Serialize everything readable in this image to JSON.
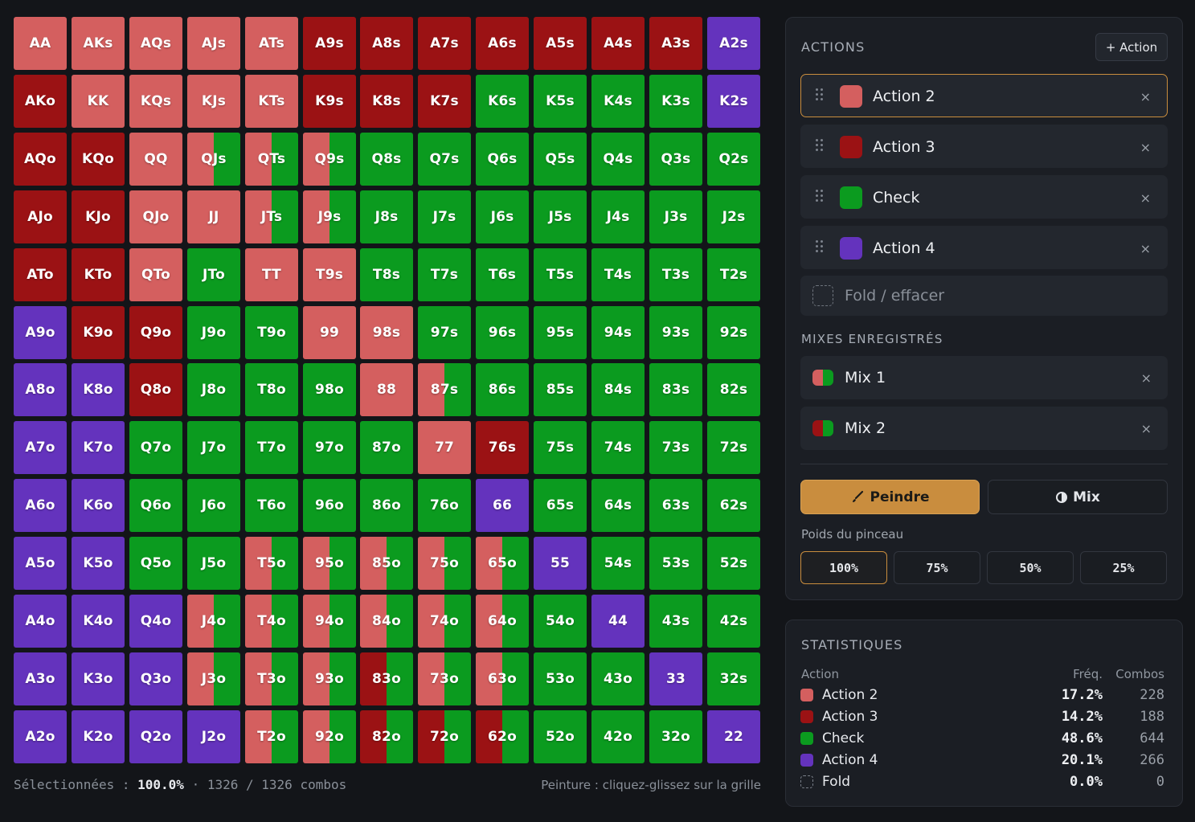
{
  "colors": {
    "action2": "#d45f5f",
    "action3": "#9b1214",
    "check": "#0b9b1f",
    "action4": "#6433bd",
    "accent": "#c98d3e"
  },
  "grid": {
    "rows": [
      [
        "AA",
        "AKs",
        "AQs",
        "AJs",
        "ATs",
        "A9s",
        "A8s",
        "A7s",
        "A6s",
        "A5s",
        "A4s",
        "A3s",
        "A2s"
      ],
      [
        "AKo",
        "KK",
        "KQs",
        "KJs",
        "KTs",
        "K9s",
        "K8s",
        "K7s",
        "K6s",
        "K5s",
        "K4s",
        "K3s",
        "K2s"
      ],
      [
        "AQo",
        "KQo",
        "QQ",
        "QJs",
        "QTs",
        "Q9s",
        "Q8s",
        "Q7s",
        "Q6s",
        "Q5s",
        "Q4s",
        "Q3s",
        "Q2s"
      ],
      [
        "AJo",
        "KJo",
        "QJo",
        "JJ",
        "JTs",
        "J9s",
        "J8s",
        "J7s",
        "J6s",
        "J5s",
        "J4s",
        "J3s",
        "J2s"
      ],
      [
        "ATo",
        "KTo",
        "QTo",
        "JTo",
        "TT",
        "T9s",
        "T8s",
        "T7s",
        "T6s",
        "T5s",
        "T4s",
        "T3s",
        "T2s"
      ],
      [
        "A9o",
        "K9o",
        "Q9o",
        "J9o",
        "T9o",
        "99",
        "98s",
        "97s",
        "96s",
        "95s",
        "94s",
        "93s",
        "92s"
      ],
      [
        "A8o",
        "K8o",
        "Q8o",
        "J8o",
        "T8o",
        "98o",
        "88",
        "87s",
        "86s",
        "85s",
        "84s",
        "83s",
        "82s"
      ],
      [
        "A7o",
        "K7o",
        "Q7o",
        "J7o",
        "T7o",
        "97o",
        "87o",
        "77",
        "76s",
        "75s",
        "74s",
        "73s",
        "72s"
      ],
      [
        "A6o",
        "K6o",
        "Q6o",
        "J6o",
        "T6o",
        "96o",
        "86o",
        "76o",
        "66",
        "65s",
        "64s",
        "63s",
        "62s"
      ],
      [
        "A5o",
        "K5o",
        "Q5o",
        "J5o",
        "T5o",
        "95o",
        "85o",
        "75o",
        "65o",
        "55",
        "54s",
        "53s",
        "52s"
      ],
      [
        "A4o",
        "K4o",
        "Q4o",
        "J4o",
        "T4o",
        "94o",
        "84o",
        "74o",
        "64o",
        "54o",
        "44",
        "43s",
        "42s"
      ],
      [
        "A3o",
        "K3o",
        "Q3o",
        "J3o",
        "T3o",
        "93o",
        "83o",
        "73o",
        "63o",
        "53o",
        "43o",
        "33",
        "32s"
      ],
      [
        "A2o",
        "K2o",
        "Q2o",
        "J2o",
        "T2o",
        "92o",
        "82o",
        "72o",
        "62o",
        "52o",
        "42o",
        "32o",
        "22"
      ]
    ],
    "fills": [
      [
        "2",
        "2",
        "2",
        "2",
        "2",
        "3",
        "3",
        "3",
        "3",
        "3",
        "3",
        "3",
        "4"
      ],
      [
        "3",
        "2",
        "2",
        "2",
        "2",
        "3",
        "3",
        "3",
        "c",
        "c",
        "c",
        "c",
        "4"
      ],
      [
        "3",
        "3",
        "2",
        "m1",
        "m1",
        "m1",
        "c",
        "c",
        "c",
        "c",
        "c",
        "c",
        "c"
      ],
      [
        "3",
        "3",
        "2",
        "2",
        "m1",
        "m1",
        "c",
        "c",
        "c",
        "c",
        "c",
        "c",
        "c"
      ],
      [
        "3",
        "3",
        "2",
        "c",
        "2",
        "2",
        "c",
        "c",
        "c",
        "c",
        "c",
        "c",
        "c"
      ],
      [
        "4",
        "3",
        "3",
        "c",
        "c",
        "2",
        "2",
        "c",
        "c",
        "c",
        "c",
        "c",
        "c"
      ],
      [
        "4",
        "4",
        "3",
        "c",
        "c",
        "c",
        "2",
        "m1",
        "c",
        "c",
        "c",
        "c",
        "c"
      ],
      [
        "4",
        "4",
        "c",
        "c",
        "c",
        "c",
        "c",
        "2",
        "3",
        "c",
        "c",
        "c",
        "c"
      ],
      [
        "4",
        "4",
        "c",
        "c",
        "c",
        "c",
        "c",
        "c",
        "4",
        "c",
        "c",
        "c",
        "c"
      ],
      [
        "4",
        "4",
        "c",
        "c",
        "m1",
        "m1",
        "m1",
        "m1",
        "m1",
        "4",
        "c",
        "c",
        "c"
      ],
      [
        "4",
        "4",
        "4",
        "m1",
        "m1",
        "m1",
        "m1",
        "m1",
        "m1",
        "c",
        "4",
        "c",
        "c"
      ],
      [
        "4",
        "4",
        "4",
        "m1",
        "m1",
        "m1",
        "m2",
        "m1",
        "m1",
        "c",
        "c",
        "4",
        "c"
      ],
      [
        "4",
        "4",
        "4",
        "4",
        "m1",
        "m1",
        "m2",
        "m2",
        "m2",
        "c",
        "c",
        "c",
        "4"
      ]
    ]
  },
  "footer": {
    "selected_label": "Sélectionnées :",
    "selected_pct": "100.0%",
    "combos_text": "· 1326 / 1326 combos",
    "hint": "Peinture : cliquez-glissez sur la grille"
  },
  "actions_panel": {
    "title": "ACTIONS",
    "add_label": "+ Action",
    "items": [
      {
        "name": "Action 2",
        "color": "#d45f5f",
        "selected": true
      },
      {
        "name": "Action 3",
        "color": "#9b1214",
        "selected": false
      },
      {
        "name": "Check",
        "color": "#0b9b1f",
        "selected": false
      },
      {
        "name": "Action 4",
        "color": "#6433bd",
        "selected": false
      }
    ],
    "remove_glyph": "×",
    "fold_label": "Fold / effacer",
    "mixes_title": "MIXES ENREGISTRÉS",
    "mixes": [
      {
        "name": "Mix 1",
        "colors": [
          "#d45f5f",
          "#0b9b1f"
        ]
      },
      {
        "name": "Mix 2",
        "colors": [
          "#9b1214",
          "#0b9b1f"
        ]
      }
    ],
    "paint_label": "Peindre",
    "mix_label": "Mix",
    "weight_title": "Poids du pinceau",
    "weights": [
      "100%",
      "75%",
      "50%",
      "25%"
    ],
    "active_weight": "100%"
  },
  "stats": {
    "title": "STATISTIQUES",
    "col_action": "Action",
    "col_freq": "Fréq.",
    "col_combos": "Combos",
    "rows": [
      {
        "name": "Action 2",
        "freq": "17.2%",
        "combos": "228",
        "color": "#d45f5f"
      },
      {
        "name": "Action 3",
        "freq": "14.2%",
        "combos": "188",
        "color": "#9b1214"
      },
      {
        "name": "Check",
        "freq": "48.6%",
        "combos": "644",
        "color": "#0b9b1f"
      },
      {
        "name": "Action 4",
        "freq": "20.1%",
        "combos": "266",
        "color": "#6433bd"
      },
      {
        "name": "Fold",
        "freq": "0.0%",
        "combos": "0",
        "color": ""
      }
    ]
  }
}
